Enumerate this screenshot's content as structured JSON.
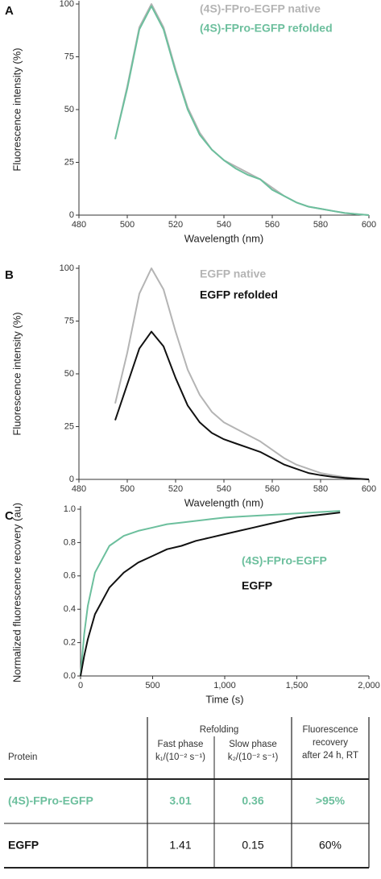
{
  "chart_data": [
    {
      "type": "line",
      "panel_label": "A",
      "xlabel": "Wavelength (nm)",
      "ylabel": "Fluorescence intensity (%)",
      "xlim": [
        480,
        600
      ],
      "ylim": [
        0,
        100
      ],
      "xticks": [
        480,
        500,
        520,
        540,
        560,
        580,
        600
      ],
      "yticks": [
        0,
        25,
        50,
        75,
        100
      ],
      "legend": "upper right",
      "x": [
        495,
        500,
        505,
        510,
        515,
        520,
        525,
        530,
        535,
        540,
        545,
        550,
        555,
        560,
        565,
        570,
        575,
        580,
        585,
        590,
        595,
        600
      ],
      "series": [
        {
          "name": "(4S)-FPro-EGFP native",
          "color": "#b4b4b4",
          "values": [
            36,
            61,
            89,
            100,
            89,
            69,
            51,
            39,
            31,
            26,
            23,
            20,
            17,
            13,
            9,
            6,
            4,
            3,
            2,
            1,
            0.5,
            0
          ]
        },
        {
          "name": "(4S)-FPro-EGFP refolded",
          "color": "#6cbf9d",
          "values": [
            36,
            60,
            88,
            99,
            88,
            68,
            50,
            38,
            31,
            26,
            22,
            19,
            17,
            12,
            9,
            6,
            4,
            3,
            2,
            1,
            0.5,
            0
          ]
        }
      ]
    },
    {
      "type": "line",
      "panel_label": "B",
      "xlabel": "Wavelength (nm)",
      "ylabel": "Fluorescence intensity (%)",
      "xlim": [
        480,
        600
      ],
      "ylim": [
        0,
        100
      ],
      "xticks": [
        480,
        500,
        520,
        540,
        560,
        580,
        600
      ],
      "yticks": [
        0,
        25,
        50,
        75,
        100
      ],
      "legend": "upper right",
      "x": [
        495,
        500,
        505,
        510,
        515,
        520,
        525,
        530,
        535,
        540,
        545,
        550,
        555,
        560,
        565,
        570,
        575,
        580,
        585,
        590,
        595,
        600
      ],
      "series": [
        {
          "name": "EGFP native",
          "color": "#b4b4b4",
          "values": [
            36,
            60,
            88,
            100,
            90,
            70,
            52,
            40,
            32,
            27,
            24,
            21,
            18,
            14,
            10,
            7,
            5,
            3,
            2,
            1,
            0.5,
            0
          ]
        },
        {
          "name": "EGFP refolded",
          "color": "#111111",
          "values": [
            28,
            45,
            62,
            70,
            63,
            48,
            35,
            27,
            22,
            19,
            17,
            15,
            13,
            10,
            7,
            5,
            3,
            2,
            1.2,
            0.7,
            0.3,
            0
          ]
        }
      ]
    },
    {
      "type": "line",
      "panel_label": "C",
      "xlabel": "Time (s)",
      "ylabel": "Normalized fluorescence recovery (au)",
      "xlim": [
        0,
        2000
      ],
      "ylim": [
        0,
        1.0
      ],
      "xticks": [
        0,
        500,
        {
          "value": 1000,
          "label": "1,000"
        },
        {
          "value": 1500,
          "label": "1,500"
        },
        {
          "value": 2000,
          "label": "2,000"
        }
      ],
      "yticks": [
        {
          "value": 0,
          "label": "0.0"
        },
        0.2,
        0.4,
        0.6,
        0.8,
        {
          "value": 1,
          "label": "1.0"
        }
      ],
      "legend": "center",
      "x": [
        0,
        25,
        50,
        100,
        200,
        300,
        400,
        500,
        600,
        700,
        800,
        900,
        1000,
        1100,
        1200,
        1300,
        1400,
        1500,
        1600,
        1700,
        1800
      ],
      "series": [
        {
          "name": "(4S)-FPro-EGFP",
          "color": "#6cbf9d",
          "values": [
            0,
            0.25,
            0.42,
            0.62,
            0.78,
            0.84,
            0.87,
            0.89,
            0.91,
            0.92,
            0.93,
            0.94,
            0.95,
            0.955,
            0.96,
            0.965,
            0.97,
            0.975,
            0.98,
            0.985,
            0.99
          ]
        },
        {
          "name": "EGFP",
          "color": "#111111",
          "values": [
            0,
            0.12,
            0.22,
            0.37,
            0.53,
            0.62,
            0.68,
            0.72,
            0.76,
            0.78,
            0.81,
            0.83,
            0.85,
            0.87,
            0.89,
            0.91,
            0.93,
            0.95,
            0.96,
            0.97,
            0.98
          ]
        }
      ]
    }
  ],
  "table": {
    "group_header": "Refolding",
    "header": [
      [
        "Protein"
      ],
      [
        "Fast phase",
        "k₁/(10⁻² s⁻¹)"
      ],
      [
        "Slow phase",
        "k₂/(10⁻² s⁻¹)"
      ],
      [
        "Fluorescence",
        "recovery",
        "after 24 h, RT"
      ]
    ],
    "rows": [
      [
        "(4S)-FPro-EGFP",
        "3.01",
        "0.36",
        ">95%"
      ],
      [
        "EGFP",
        "1.41",
        "0.15",
        "60%"
      ]
    ],
    "row_colors": [
      "#6cbf9d",
      "#111111"
    ]
  }
}
